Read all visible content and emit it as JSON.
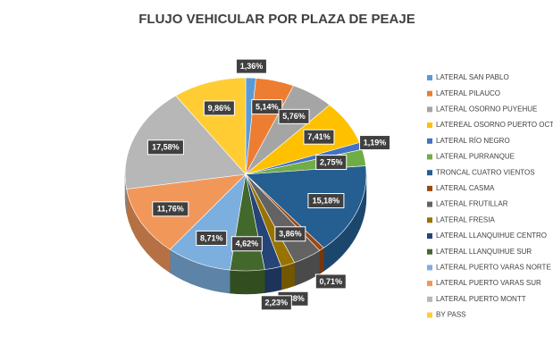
{
  "chart_data": {
    "type": "pie",
    "title": "FLUJO VEHICULAR POR PLAZA DE PEAJE",
    "categories": [
      "LATERAL SAN PABLO",
      "LATERAL PILAUCO",
      "LATERAL OSORNO PUYEHUE",
      "LATEREAL OSORNO PUERTO OCTAY",
      "LATERAL RÍO NEGRO",
      "LATERAL PURRANQUE",
      "TRONCAL CUATRO VIENTOS",
      "LATERAL CASMA",
      "LATERAL FRUTILLAR",
      "LATERAL FRESIA",
      "LATERAL LLANQUIHUE CENTRO",
      "LATERAL LLANQUIHUE SUR",
      "LATERAL PUERTO VARAS NORTE",
      "LATERAL PUERTO VARAS SUR",
      "LATERAL PUERTO MONTT",
      "BY PASS"
    ],
    "values": [
      1.36,
      5.14,
      5.76,
      7.41,
      1.19,
      2.75,
      15.18,
      0.71,
      3.86,
      1.88,
      2.23,
      4.62,
      8.71,
      11.76,
      17.58,
      9.86
    ],
    "value_labels": [
      "1,36%",
      "5,14%",
      "5,76%",
      "7,41%",
      "1,19%",
      "2,75%",
      "15,18%",
      "0,71%",
      "3,86%",
      "1,88%",
      "2,23%",
      "4,62%",
      "8,71%",
      "11,76%",
      "17,58%",
      "9,86%"
    ],
    "colors": [
      "#5b9bd5",
      "#ed7d31",
      "#a5a5a5",
      "#ffc000",
      "#4472c4",
      "#70ad47",
      "#255e91",
      "#9e480e",
      "#636363",
      "#997300",
      "#264478",
      "#43682b",
      "#7cafdd",
      "#f1975a",
      "#b7b7b7",
      "#ffcd33"
    ],
    "legend": "right"
  }
}
